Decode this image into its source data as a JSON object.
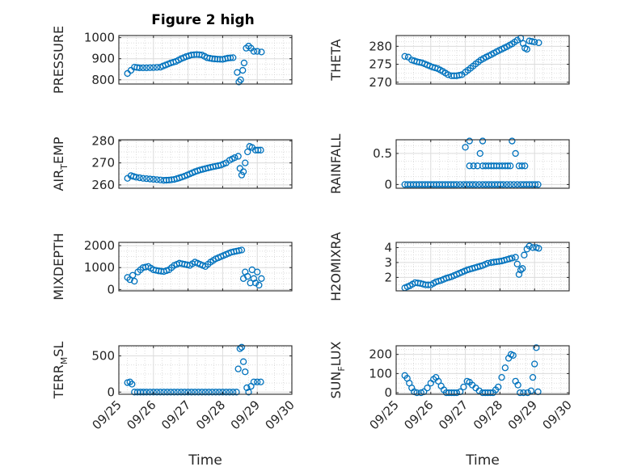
{
  "figure": {
    "title": "Figure 2 high",
    "marker_color": "#0072bd",
    "x_ticks": [
      "09/25",
      "09/26",
      "09/27",
      "09/28",
      "09/29",
      "09/30"
    ],
    "x_label": "Time"
  },
  "chart_data": [
    {
      "type": "scatter",
      "ylabel": "PRESSURE",
      "ylim": [
        780,
        1010
      ],
      "yticks": [
        800,
        900,
        1000
      ],
      "xlim": [
        25,
        30
      ],
      "grid": true,
      "title": "Figure 2 high",
      "segments": [
        [
          [
            25.25,
            830
          ],
          [
            25.35,
            845
          ],
          [
            25.45,
            860
          ],
          [
            25.6,
            857
          ],
          [
            25.8,
            857
          ],
          [
            26.0,
            858
          ],
          [
            26.2,
            860
          ],
          [
            26.35,
            870
          ],
          [
            26.5,
            880
          ],
          [
            26.65,
            887
          ],
          [
            26.8,
            900
          ],
          [
            26.95,
            910
          ],
          [
            27.1,
            918
          ],
          [
            27.25,
            920
          ],
          [
            27.4,
            918
          ],
          [
            27.55,
            905
          ],
          [
            27.7,
            900
          ],
          [
            27.85,
            898
          ],
          [
            28.0,
            897
          ],
          [
            28.15,
            903
          ],
          [
            28.3,
            905
          ]
        ],
        [
          [
            28.42,
            835
          ],
          [
            28.47,
            790
          ],
          [
            28.52,
            800
          ],
          [
            28.58,
            845
          ],
          [
            28.62,
            880
          ],
          [
            28.68,
            950
          ],
          [
            28.75,
            960
          ],
          [
            28.82,
            950
          ],
          [
            28.9,
            935
          ],
          [
            29.0,
            935
          ],
          [
            29.12,
            932
          ]
        ]
      ]
    },
    {
      "type": "scatter",
      "ylabel": "THETA",
      "ylim": [
        269.5,
        283
      ],
      "yticks": [
        270,
        275,
        280
      ],
      "xlim": [
        25,
        30
      ],
      "grid": true,
      "segments": [
        [
          [
            25.25,
            277.2
          ],
          [
            25.35,
            277.0
          ],
          [
            25.45,
            276.2
          ],
          [
            25.6,
            275.7
          ],
          [
            25.75,
            275.4
          ],
          [
            25.9,
            274.8
          ],
          [
            26.05,
            274.2
          ],
          [
            26.2,
            273.8
          ],
          [
            26.35,
            273.0
          ],
          [
            26.5,
            272.1
          ],
          [
            26.6,
            271.8
          ],
          [
            26.75,
            271.8
          ],
          [
            26.9,
            272.1
          ],
          [
            27.0,
            272.8
          ],
          [
            27.15,
            273.9
          ],
          [
            27.3,
            275.1
          ],
          [
            27.45,
            276.2
          ],
          [
            27.6,
            277.0
          ],
          [
            27.75,
            277.7
          ],
          [
            27.9,
            278.5
          ],
          [
            28.05,
            279.2
          ],
          [
            28.2,
            279.9
          ],
          [
            28.35,
            280.7
          ],
          [
            28.5,
            281.7
          ],
          [
            28.6,
            282.3
          ]
        ],
        [
          [
            28.67,
            280.8
          ],
          [
            28.72,
            279.5
          ],
          [
            28.78,
            279.2
          ],
          [
            28.85,
            281.5
          ],
          [
            29.0,
            281.2
          ],
          [
            29.12,
            281.0
          ]
        ]
      ]
    },
    {
      "type": "scatter",
      "ylabel": "AIR_TEMP",
      "ylabel_parts": [
        "AIR",
        "T",
        "EMP"
      ],
      "ylim": [
        258.5,
        280.5
      ],
      "yticks": [
        260,
        270,
        280
      ],
      "xlim": [
        25,
        30
      ],
      "grid": true,
      "segments": [
        [
          [
            25.25,
            263.0
          ],
          [
            25.35,
            264.2
          ],
          [
            25.5,
            263.5
          ],
          [
            25.7,
            263.0
          ],
          [
            25.9,
            262.7
          ],
          [
            26.1,
            262.4
          ],
          [
            26.3,
            262.1
          ],
          [
            26.45,
            262.2
          ],
          [
            26.6,
            262.5
          ],
          [
            26.75,
            263.2
          ],
          [
            26.9,
            264.0
          ],
          [
            27.05,
            265.0
          ],
          [
            27.2,
            266.0
          ],
          [
            27.35,
            266.8
          ],
          [
            27.5,
            267.4
          ],
          [
            27.65,
            268.0
          ],
          [
            27.8,
            268.5
          ],
          [
            27.95,
            269.0
          ],
          [
            28.1,
            270.0
          ],
          [
            28.2,
            271.2
          ],
          [
            28.35,
            272.4
          ],
          [
            28.45,
            273.0
          ]
        ],
        [
          [
            28.5,
            267.5
          ],
          [
            28.55,
            264.5
          ],
          [
            28.6,
            266.0
          ],
          [
            28.65,
            270.0
          ],
          [
            28.72,
            275.0
          ],
          [
            28.78,
            277.5
          ],
          [
            28.85,
            277.0
          ],
          [
            28.95,
            275.8
          ],
          [
            29.1,
            275.8
          ]
        ]
      ]
    },
    {
      "type": "scatter",
      "ylabel": "RAINFALL",
      "ylim": [
        -0.06,
        0.72
      ],
      "yticks": [
        0,
        0.5
      ],
      "xlim": [
        25,
        30
      ],
      "grid": true,
      "segments": [
        [
          [
            25.25,
            0
          ],
          [
            25.5,
            0
          ],
          [
            25.75,
            0
          ],
          [
            26.0,
            0
          ],
          [
            26.25,
            0
          ],
          [
            26.5,
            0
          ],
          [
            26.75,
            0
          ],
          [
            26.95,
            0
          ],
          [
            27.3,
            0
          ],
          [
            27.5,
            0
          ],
          [
            27.85,
            0
          ],
          [
            28.1,
            0
          ],
          [
            28.4,
            0
          ],
          [
            28.6,
            0
          ],
          [
            28.85,
            0
          ],
          [
            29.1,
            0
          ]
        ],
        [
          [
            27.0,
            0.6
          ],
          [
            27.12,
            0.7
          ],
          [
            27.12,
            0.3
          ],
          [
            27.35,
            0.3
          ],
          [
            27.5,
            0.7
          ],
          [
            27.5,
            0.3
          ],
          [
            27.75,
            0.3
          ],
          [
            27.9,
            0.3
          ],
          [
            28.15,
            0.3
          ],
          [
            28.3,
            0.3
          ],
          [
            28.35,
            0.7
          ],
          [
            28.55,
            0.3
          ],
          [
            28.72,
            0.3
          ]
        ]
      ]
    },
    {
      "type": "scatter",
      "ylabel": "MIXDEPTH",
      "ylim": [
        -60,
        2150
      ],
      "yticks": [
        0,
        1000,
        2000
      ],
      "xlim": [
        25,
        30
      ],
      "grid": true,
      "segments": [
        [
          [
            25.25,
            550
          ],
          [
            25.32,
            450
          ],
          [
            25.4,
            650
          ],
          [
            25.45,
            380
          ],
          [
            25.55,
            800
          ],
          [
            25.7,
            1000
          ],
          [
            25.85,
            1050
          ],
          [
            26.0,
            900
          ],
          [
            26.15,
            850
          ],
          [
            26.3,
            820
          ],
          [
            26.45,
            900
          ],
          [
            26.6,
            1100
          ],
          [
            26.75,
            1200
          ],
          [
            26.9,
            1150
          ],
          [
            27.05,
            1100
          ],
          [
            27.2,
            1250
          ],
          [
            27.35,
            1150
          ],
          [
            27.5,
            1050
          ],
          [
            27.65,
            1250
          ],
          [
            27.8,
            1400
          ],
          [
            27.95,
            1500
          ],
          [
            28.1,
            1600
          ],
          [
            28.25,
            1700
          ],
          [
            28.4,
            1750
          ],
          [
            28.55,
            1800
          ]
        ],
        [
          [
            28.6,
            500
          ],
          [
            28.65,
            800
          ],
          [
            28.72,
            600
          ],
          [
            28.8,
            300
          ],
          [
            28.85,
            900
          ],
          [
            28.9,
            500
          ],
          [
            28.95,
            300
          ],
          [
            29.0,
            800
          ],
          [
            29.05,
            200
          ],
          [
            29.12,
            500
          ]
        ]
      ]
    },
    {
      "type": "scatter",
      "ylabel": "H2OMIXRA",
      "ylim": [
        1.1,
        4.35
      ],
      "yticks": [
        2,
        3,
        4
      ],
      "xlim": [
        25,
        30
      ],
      "grid": true,
      "segments": [
        [
          [
            25.25,
            1.3
          ],
          [
            25.4,
            1.45
          ],
          [
            25.55,
            1.65
          ],
          [
            25.7,
            1.6
          ],
          [
            25.85,
            1.5
          ],
          [
            26.0,
            1.5
          ],
          [
            26.15,
            1.7
          ],
          [
            26.3,
            1.8
          ],
          [
            26.45,
            1.95
          ],
          [
            26.6,
            2.05
          ],
          [
            26.75,
            2.2
          ],
          [
            26.9,
            2.35
          ],
          [
            27.05,
            2.5
          ],
          [
            27.2,
            2.6
          ],
          [
            27.35,
            2.7
          ],
          [
            27.5,
            2.8
          ],
          [
            27.65,
            2.95
          ],
          [
            27.75,
            3.0
          ],
          [
            27.9,
            3.05
          ],
          [
            28.05,
            3.1
          ],
          [
            28.2,
            3.2
          ],
          [
            28.35,
            3.3
          ],
          [
            28.45,
            3.35
          ]
        ],
        [
          [
            28.5,
            2.9
          ],
          [
            28.55,
            2.2
          ],
          [
            28.6,
            2.5
          ],
          [
            28.65,
            2.6
          ],
          [
            28.7,
            3.5
          ],
          [
            28.78,
            3.9
          ],
          [
            28.85,
            4.1
          ],
          [
            28.95,
            4.0
          ],
          [
            29.05,
            4.0
          ],
          [
            29.12,
            3.95
          ]
        ]
      ]
    },
    {
      "type": "scatter",
      "ylabel": "TERR_MSL",
      "ylabel_parts": [
        "TERR",
        "M",
        "SL"
      ],
      "ylim": [
        -30,
        640
      ],
      "yticks": [
        0,
        500
      ],
      "xlim": [
        25,
        30
      ],
      "grid": true,
      "segments": [
        [
          [
            25.25,
            130
          ],
          [
            25.32,
            140
          ],
          [
            25.38,
            110
          ],
          [
            25.45,
            0
          ],
          [
            25.8,
            0
          ],
          [
            26.2,
            0
          ],
          [
            26.6,
            0
          ],
          [
            27.0,
            0
          ],
          [
            27.4,
            0
          ],
          [
            27.8,
            0
          ],
          [
            28.2,
            0
          ],
          [
            28.4,
            0
          ]
        ],
        [
          [
            28.45,
            320
          ],
          [
            28.5,
            600
          ],
          [
            28.55,
            620
          ],
          [
            28.6,
            420
          ],
          [
            28.65,
            280
          ],
          [
            28.7,
            60
          ],
          [
            28.75,
            0
          ],
          [
            28.82,
            80
          ],
          [
            28.9,
            140
          ],
          [
            29.0,
            140
          ],
          [
            29.1,
            140
          ]
        ]
      ]
    },
    {
      "type": "scatter",
      "ylabel": "SUN_FLUX",
      "ylabel_parts": [
        "SUN",
        "F",
        "LUX"
      ],
      "ylim": [
        -8,
        245
      ],
      "yticks": [
        0,
        100,
        200
      ],
      "xlim": [
        25,
        30
      ],
      "grid": true,
      "segments": [
        [
          [
            25.25,
            90
          ],
          [
            25.32,
            75
          ],
          [
            25.38,
            50
          ],
          [
            25.45,
            25
          ],
          [
            25.52,
            5
          ],
          [
            25.6,
            0
          ],
          [
            25.72,
            0
          ],
          [
            25.8,
            5
          ],
          [
            25.9,
            25
          ],
          [
            26.0,
            50
          ],
          [
            26.08,
            70
          ],
          [
            26.15,
            80
          ],
          [
            26.22,
            60
          ],
          [
            26.3,
            35
          ],
          [
            26.38,
            15
          ],
          [
            26.45,
            0
          ],
          [
            26.6,
            0
          ],
          [
            26.75,
            0
          ],
          [
            26.85,
            5
          ],
          [
            26.95,
            30
          ],
          [
            27.05,
            60
          ],
          [
            27.12,
            55
          ],
          [
            27.2,
            40
          ],
          [
            27.3,
            25
          ],
          [
            27.4,
            10
          ],
          [
            27.5,
            0
          ],
          [
            27.65,
            0
          ],
          [
            27.8,
            0
          ],
          [
            27.95,
            30
          ],
          [
            28.05,
            80
          ],
          [
            28.15,
            130
          ],
          [
            28.25,
            180
          ],
          [
            28.32,
            200
          ],
          [
            28.38,
            195
          ]
        ],
        [
          [
            28.45,
            60
          ],
          [
            28.52,
            40
          ],
          [
            28.58,
            0
          ],
          [
            28.68,
            0
          ],
          [
            28.8,
            0
          ],
          [
            28.9,
            10
          ],
          [
            28.95,
            80
          ],
          [
            29.0,
            150
          ],
          [
            29.05,
            235
          ],
          [
            29.1,
            5
          ]
        ]
      ]
    }
  ]
}
